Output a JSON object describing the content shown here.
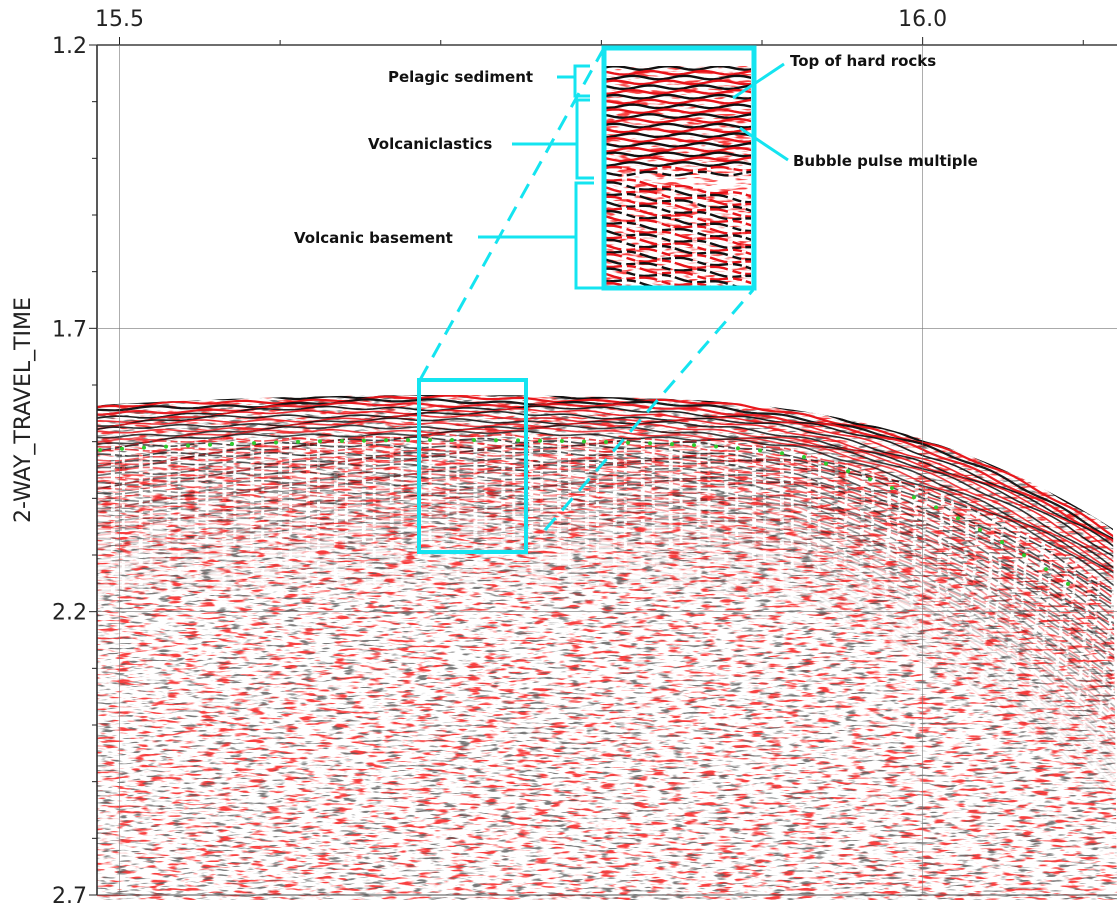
{
  "chart_data": {
    "type": "seismic",
    "y_label": "2-WAY_TRAVEL_TIME",
    "xlim": [
      15.486,
      16.121
    ],
    "ylim": [
      1.2,
      2.7
    ],
    "xticks": [
      {
        "value": 15.5,
        "label": "15.5"
      },
      {
        "value": 16.0,
        "label": "16.0"
      }
    ],
    "xminorticks": [
      15.6,
      15.7,
      15.8,
      15.9,
      16.1
    ],
    "yticks": [
      {
        "value": 1.2,
        "label": "1.2"
      },
      {
        "value": 1.7,
        "label": "1.7"
      },
      {
        "value": 2.2,
        "label": "2.2"
      },
      {
        "value": 2.7,
        "label": "2.7"
      }
    ],
    "yminorticks": [
      1.3,
      1.4,
      1.5,
      1.6,
      1.8,
      1.9,
      2.0,
      2.1,
      2.3,
      2.4,
      2.5,
      2.6
    ],
    "grid": true,
    "annotations": [
      "Pelagic sediment",
      "Volcaniclastics",
      "Volcanic basement",
      "Top of hard rocks",
      "Bubble pulse multiple"
    ]
  }
}
